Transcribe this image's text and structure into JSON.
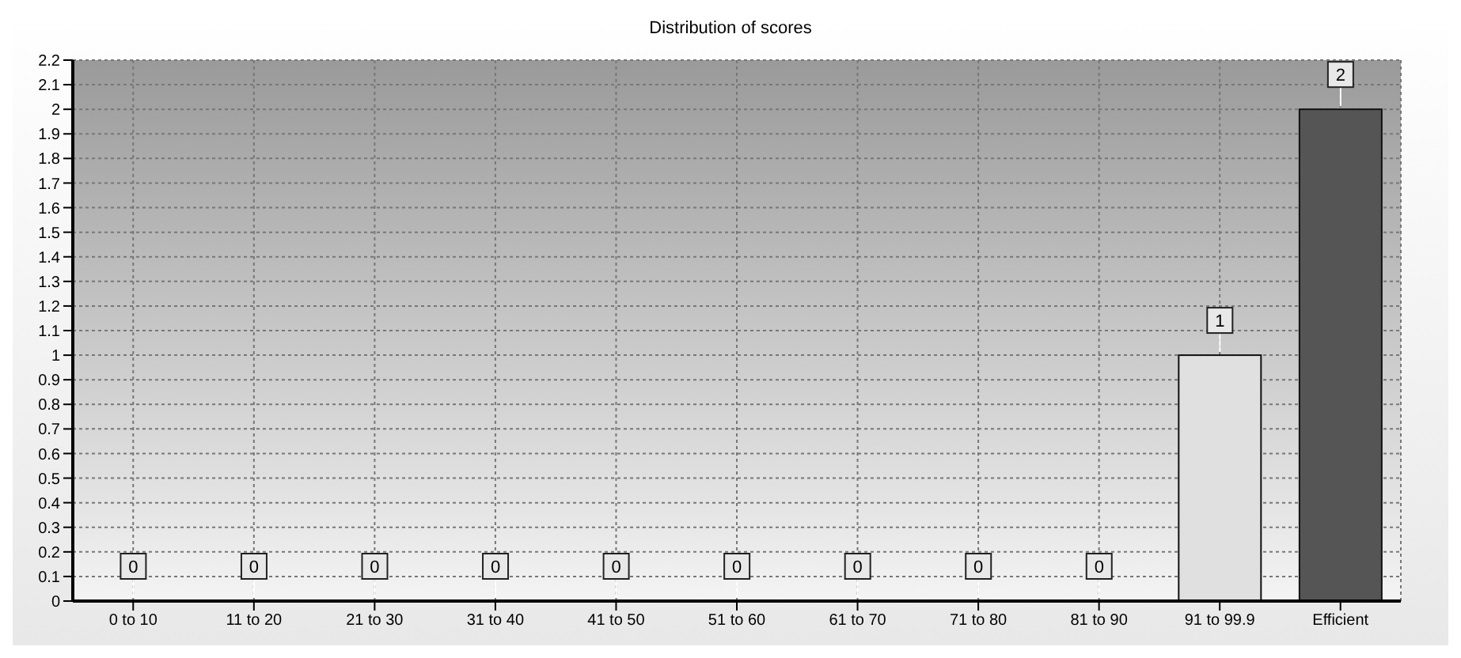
{
  "chart_data": {
    "type": "bar",
    "title": "Distribution of scores",
    "categories": [
      "0 to 10",
      "11 to 20",
      "21 to 30",
      "31 to 40",
      "41 to 50",
      "51 to 60",
      "61 to 70",
      "71 to 80",
      "81 to 90",
      "91 to 99.9",
      "Efficient"
    ],
    "values": [
      0,
      0,
      0,
      0,
      0,
      0,
      0,
      0,
      0,
      1,
      2
    ],
    "colors": [
      "#505050",
      "#505050",
      "#505050",
      "#505050",
      "#505050",
      "#505050",
      "#505050",
      "#505050",
      "#a0a0a0",
      "#e0e0e0",
      "#555555"
    ],
    "ylim": [
      0,
      2.2
    ],
    "yticks": [
      0,
      0.1,
      0.2,
      0.3,
      0.4,
      0.5,
      0.6,
      0.7,
      0.8,
      0.9,
      1,
      1.1,
      1.2,
      1.3,
      1.4,
      1.5,
      1.6,
      1.7,
      1.8,
      1.9,
      2,
      2.1,
      2.2
    ],
    "grid": true,
    "data_labels": true
  }
}
